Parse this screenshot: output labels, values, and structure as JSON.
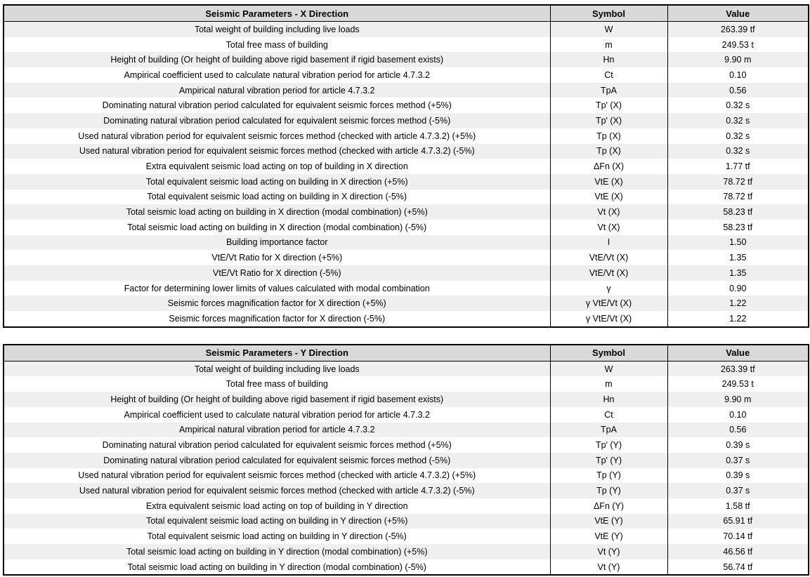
{
  "colors": {
    "header_bg": "#d9d9d9",
    "stripe_bg": "#efefef",
    "border": "#000000",
    "text": "#000000"
  },
  "headers": {
    "symbol": "Symbol",
    "value": "Value"
  },
  "tables": [
    {
      "title": "Seismic Parameters - X Direction",
      "rows": [
        {
          "desc": "Total weight of building including live loads",
          "symbol": "W",
          "value": "263.39 tf"
        },
        {
          "desc": "Total free mass of building",
          "symbol": "m",
          "value": "249.53 t"
        },
        {
          "desc": "Height of building (Or height of building above rigid basement if rigid basement exists)",
          "symbol": "Hn",
          "value": "9.90 m"
        },
        {
          "desc": "Ampirical coefficient used to calculate natural vibration period for article 4.7.3.2",
          "symbol": "Ct",
          "value": "0.10"
        },
        {
          "desc": "Ampirical natural vibration period for article 4.7.3.2",
          "symbol": "TpA",
          "value": "0.56"
        },
        {
          "desc": "Dominating natural vibration period calculated for equivalent seismic forces method (+5%)",
          "symbol": "Tp' (X)",
          "value": "0.32 s"
        },
        {
          "desc": "Dominating natural vibration period calculated for equivalent seismic forces method (-5%)",
          "symbol": "Tp' (X)",
          "value": "0.32 s"
        },
        {
          "desc": "Used natural vibration period for equivalent seismic forces method (checked with article 4.7.3.2) (+5%)",
          "symbol": "Tp (X)",
          "value": "0.32 s"
        },
        {
          "desc": "Used natural vibration period for equivalent seismic forces method (checked with article 4.7.3.2) (-5%)",
          "symbol": "Tp (X)",
          "value": "0.32 s"
        },
        {
          "desc": "Extra equivalent seismic load acting on top of building in X direction",
          "symbol": "ΔFn (X)",
          "value": "1.77 tf"
        },
        {
          "desc": "Total equivalent seismic load acting on building in X direction (+5%)",
          "symbol": "VtE (X)",
          "value": "78.72 tf"
        },
        {
          "desc": "Total equivalent seismic load acting on building in X direction (-5%)",
          "symbol": "VtE (X)",
          "value": "78.72 tf"
        },
        {
          "desc": "Total seismic load acting on building in X direction (modal combination) (+5%)",
          "symbol": "Vt (X)",
          "value": "58.23 tf"
        },
        {
          "desc": "Total seismic load acting on building in X direction (modal combination) (-5%)",
          "symbol": "Vt (X)",
          "value": "58.23 tf"
        },
        {
          "desc": "Building importance factor",
          "symbol": "I",
          "value": "1.50"
        },
        {
          "desc": "VtE/Vt Ratio for X direction (+5%)",
          "symbol": "VtE/Vt (X)",
          "value": "1.35"
        },
        {
          "desc": "VtE/Vt Ratio for X direction (-5%)",
          "symbol": "VtE/Vt (X)",
          "value": "1.35"
        },
        {
          "desc": "Factor for determining lower limits of values calculated with modal combination",
          "symbol": "γ",
          "value": "0.90"
        },
        {
          "desc": "Seismic forces magnification factor for X direction (+5%)",
          "symbol": "γ VtE/Vt (X)",
          "value": "1.22"
        },
        {
          "desc": "Seismic forces magnification factor for X direction (-5%)",
          "symbol": "γ VtE/Vt (X)",
          "value": "1.22"
        }
      ]
    },
    {
      "title": "Seismic Parameters - Y Direction",
      "rows": [
        {
          "desc": "Total weight of building including live loads",
          "symbol": "W",
          "value": "263.39 tf"
        },
        {
          "desc": "Total free mass of building",
          "symbol": "m",
          "value": "249.53 t"
        },
        {
          "desc": "Height of building (Or height of building above rigid basement if rigid basement exists)",
          "symbol": "Hn",
          "value": "9.90 m"
        },
        {
          "desc": "Ampirical coefficient used to calculate natural vibration period for article 4.7.3.2",
          "symbol": "Ct",
          "value": "0.10"
        },
        {
          "desc": "Ampirical natural vibration period for article 4.7.3.2",
          "symbol": "TpA",
          "value": "0.56"
        },
        {
          "desc": "Dominating natural vibration period calculated for equivalent seismic forces method (+5%)",
          "symbol": "Tp' (Y)",
          "value": "0.39 s"
        },
        {
          "desc": "Dominating natural vibration period calculated for equivalent seismic forces method (-5%)",
          "symbol": "Tp' (Y)",
          "value": "0.37 s"
        },
        {
          "desc": "Used natural vibration period for equivalent seismic forces method (checked with article 4.7.3.2) (+5%)",
          "symbol": "Tp (Y)",
          "value": "0.39 s"
        },
        {
          "desc": "Used natural vibration period for equivalent seismic forces method (checked with article 4.7.3.2) (-5%)",
          "symbol": "Tp (Y)",
          "value": "0.37 s"
        },
        {
          "desc": "Extra equivalent seismic load acting on top of building in Y direction",
          "symbol": "ΔFn (Y)",
          "value": "1.58 tf"
        },
        {
          "desc": "Total equivalent seismic load acting on building in Y direction (+5%)",
          "symbol": "VtE (Y)",
          "value": "65.91 tf"
        },
        {
          "desc": "Total equivalent seismic load acting on building in Y direction (-5%)",
          "symbol": "VtE (Y)",
          "value": "70.14 tf"
        },
        {
          "desc": "Total seismic load acting on building in Y direction (modal combination) (+5%)",
          "symbol": "Vt (Y)",
          "value": "46.56 tf"
        },
        {
          "desc": "Total seismic load acting on building in Y direction (modal combination) (-5%)",
          "symbol": "Vt (Y)",
          "value": "56.74 tf"
        }
      ]
    }
  ]
}
